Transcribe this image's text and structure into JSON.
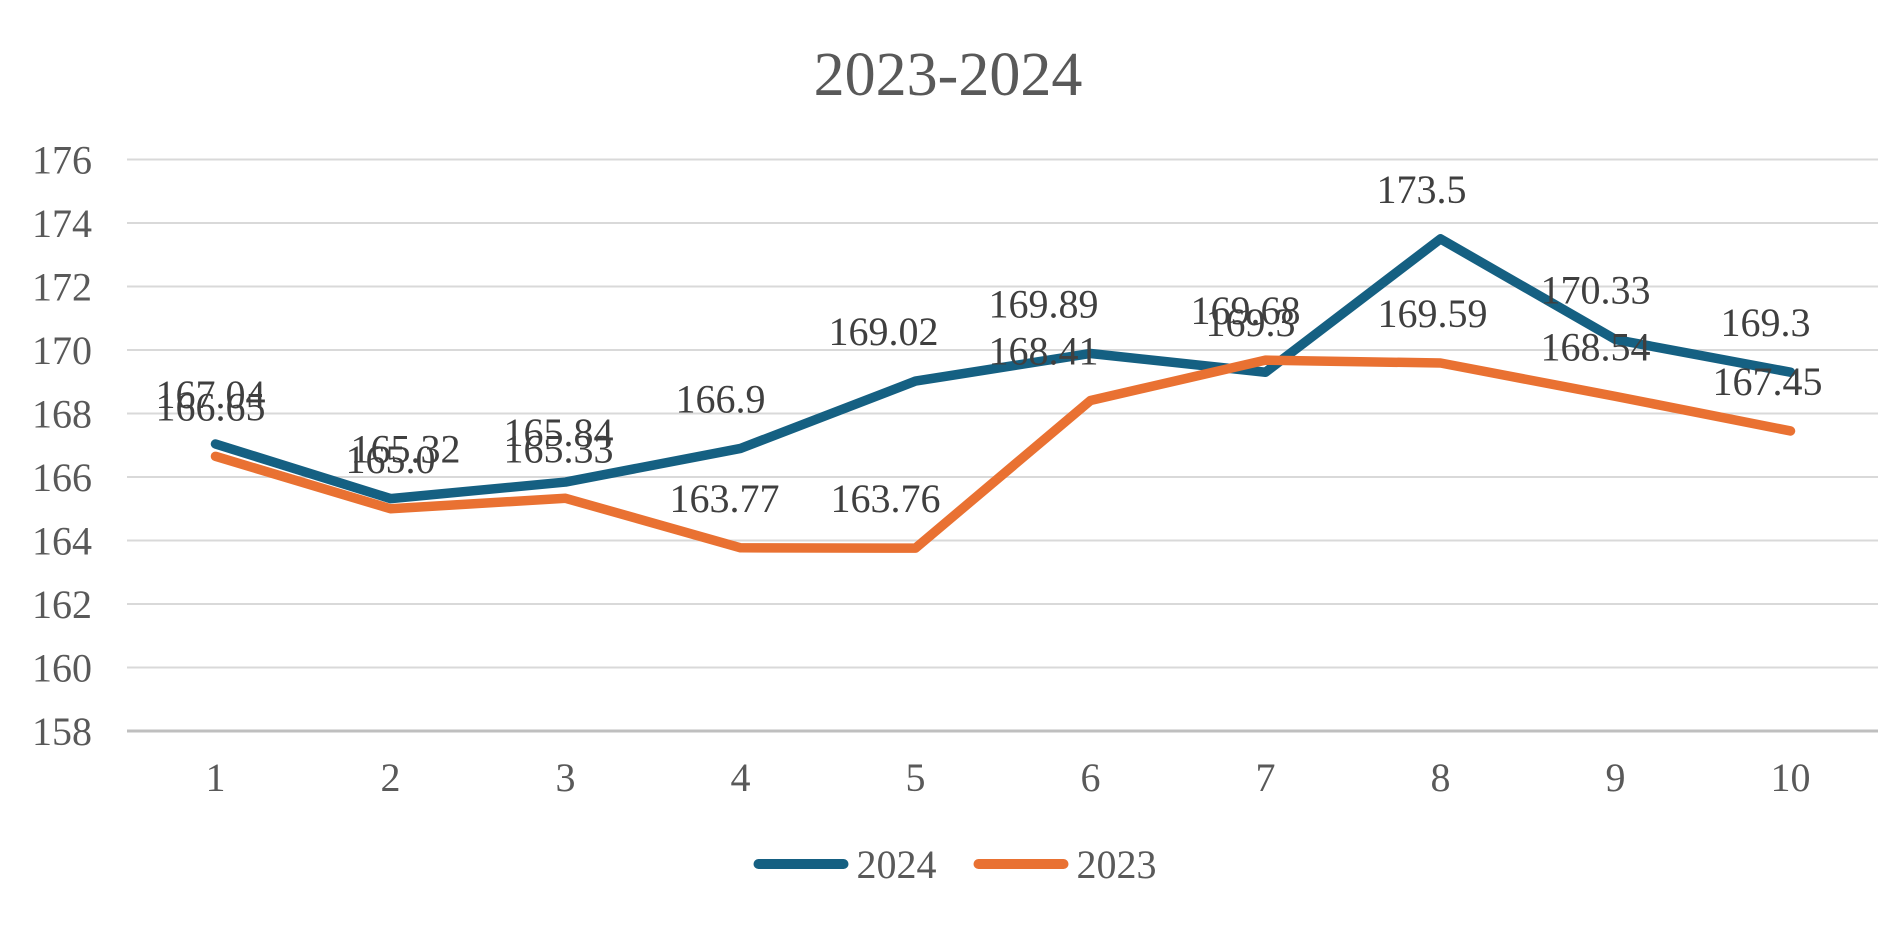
{
  "title": "2023-2024",
  "colors": {
    "series_2024": "#156082",
    "series_2023": "#E97132",
    "gridline": "#D9D9D9",
    "axis_line": "#BFBFBF",
    "title_text": "#595959",
    "axis_text": "#595959",
    "data_label_text": "#3F3F3F"
  },
  "legend": [
    {
      "label": "2024",
      "color": "#156082"
    },
    {
      "label": "2023",
      "color": "#E97132"
    }
  ],
  "chart_data": {
    "type": "line",
    "title": "2023-2024",
    "categories": [
      "1",
      "2",
      "3",
      "4",
      "5",
      "6",
      "7",
      "8",
      "9",
      "10"
    ],
    "series": [
      {
        "name": "2024",
        "color": "#156082",
        "values": [
          167.04,
          165.32,
          165.84,
          166.9,
          169.02,
          169.89,
          169.3,
          173.5,
          170.33,
          169.3
        ],
        "labels": [
          "167.04",
          "165.32",
          "165.84",
          "166.9",
          "169.02",
          "169.89",
          "169.3",
          "173.5",
          "170.33",
          "169.3"
        ]
      },
      {
        "name": "2023",
        "color": "#E97132",
        "values": [
          166.65,
          165.0,
          165.33,
          163.77,
          163.76,
          168.41,
          169.68,
          169.59,
          168.54,
          167.45
        ],
        "labels": [
          "166.65",
          "165.0",
          "165.33",
          "163.77",
          "163.76",
          "168.41",
          "169.68",
          "169.59",
          "168.54",
          "167.45"
        ]
      }
    ],
    "y_axis": {
      "min": 158,
      "max": 176,
      "step": 2,
      "tick_labels": [
        "176",
        "174",
        "172",
        "170",
        "168",
        "166",
        "164",
        "162",
        "160",
        "158"
      ]
    },
    "x_axis": {
      "tick_labels": [
        "1",
        "2",
        "3",
        "4",
        "5",
        "6",
        "7",
        "8",
        "9",
        "10"
      ]
    },
    "grid": true,
    "data_labels": true,
    "legend_position": "bottom"
  }
}
